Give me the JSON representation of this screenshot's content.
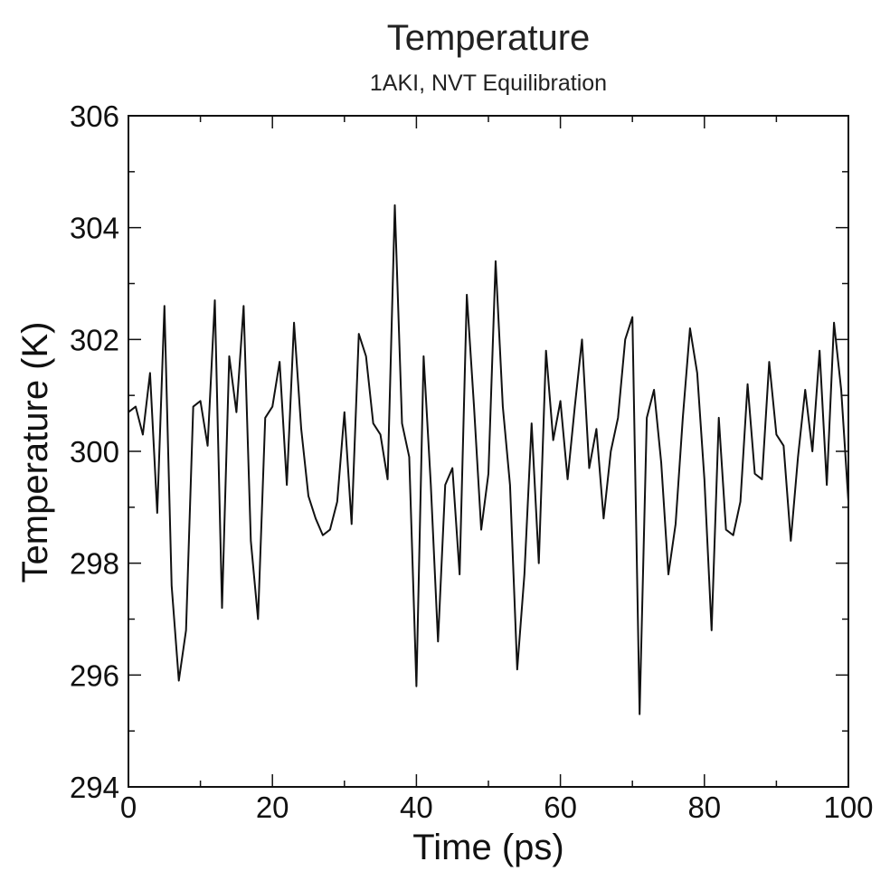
{
  "chart_data": {
    "type": "line",
    "title": "Temperature",
    "subtitle": "1AKI, NVT Equilibration",
    "xlabel": "Time (ps)",
    "ylabel": "Temperature (K)",
    "xlim": [
      0,
      100
    ],
    "ylim": [
      294,
      306
    ],
    "xticks": [
      0,
      20,
      40,
      60,
      80,
      100
    ],
    "yticks": [
      294,
      296,
      298,
      300,
      302,
      304,
      306
    ],
    "x_minor_step": 10,
    "y_minor_step": 1,
    "grid": false,
    "line_color": "#111111",
    "series": [
      {
        "x": [
          0,
          1,
          2,
          3,
          4,
          5,
          6,
          7,
          8,
          9,
          10,
          11,
          12,
          13,
          14,
          15,
          16,
          17,
          18,
          19,
          20,
          21,
          22,
          23,
          24,
          25,
          26,
          27,
          28,
          29,
          30,
          31,
          32,
          33,
          34,
          35,
          36,
          37,
          38,
          39,
          40,
          41,
          42,
          43,
          44,
          45,
          46,
          47,
          48,
          49,
          50,
          51,
          52,
          53,
          54,
          55,
          56,
          57,
          58,
          59,
          60,
          61,
          62,
          63,
          64,
          65,
          66,
          67,
          68,
          69,
          70,
          71,
          72,
          73,
          74,
          75,
          76,
          77,
          78,
          79,
          80,
          81,
          82,
          83,
          84,
          85,
          86,
          87,
          88,
          89,
          90,
          91,
          92,
          93,
          94,
          95,
          96,
          97,
          98,
          99,
          100
        ],
        "y": [
          300.7,
          300.8,
          300.3,
          301.4,
          298.9,
          302.6,
          297.6,
          295.9,
          296.8,
          300.8,
          300.9,
          300.1,
          302.7,
          297.2,
          301.7,
          300.7,
          302.6,
          298.4,
          297.0,
          300.6,
          300.8,
          301.6,
          299.4,
          302.3,
          300.4,
          299.2,
          298.8,
          298.5,
          298.6,
          299.1,
          300.7,
          298.7,
          302.1,
          301.7,
          300.5,
          300.3,
          299.5,
          304.4,
          300.5,
          299.9,
          295.8,
          301.7,
          299.4,
          296.6,
          299.4,
          299.7,
          297.8,
          302.8,
          300.8,
          298.6,
          299.6,
          303.4,
          300.8,
          299.4,
          296.1,
          297.8,
          300.5,
          298.0,
          301.8,
          300.2,
          300.9,
          299.5,
          300.8,
          302.0,
          299.7,
          300.4,
          298.8,
          300.0,
          300.6,
          302.0,
          302.4,
          295.3,
          300.6,
          301.1,
          299.8,
          297.8,
          298.7,
          300.6,
          302.2,
          301.4,
          299.5,
          296.8,
          300.6,
          298.6,
          298.5,
          299.1,
          301.2,
          299.6,
          299.5,
          301.6,
          300.3,
          300.1,
          298.4,
          299.9,
          301.1,
          300.0,
          301.8,
          299.4,
          302.3,
          301.1,
          299.1
        ]
      }
    ]
  }
}
